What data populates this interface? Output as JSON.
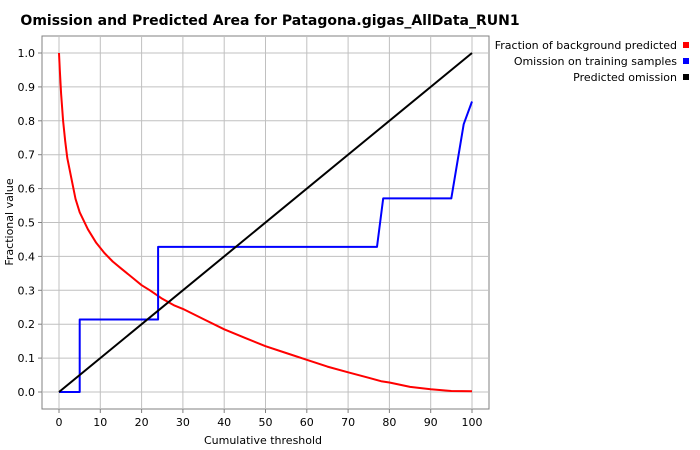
{
  "chart_data": {
    "type": "line",
    "title": "Omission and Predicted Area for Patagona.gigas_AllData_RUN1",
    "xlabel": "Cumulative threshold",
    "ylabel": "Fractional value",
    "xlim": [
      0,
      100
    ],
    "ylim": [
      0,
      1
    ],
    "xticks": [
      "0",
      "10",
      "20",
      "30",
      "40",
      "50",
      "60",
      "70",
      "80",
      "90",
      "100"
    ],
    "yticks": [
      "0.0",
      "0.1",
      "0.2",
      "0.3",
      "0.4",
      "0.5",
      "0.6",
      "0.7",
      "0.8",
      "0.9",
      "1.0"
    ],
    "grid": true,
    "legend_position": "top-right",
    "series": [
      {
        "name": "Fraction of background predicted",
        "color": "#ff0000",
        "x": [
          0,
          0.2,
          0.5,
          1,
          1.5,
          2,
          3,
          4,
          5,
          7,
          9,
          11,
          13,
          15,
          18,
          20,
          22,
          25,
          28,
          30,
          35,
          40,
          45,
          50,
          55,
          60,
          65,
          70,
          75,
          78,
          80,
          85,
          90,
          95,
          100
        ],
        "y": [
          1.0,
          0.95,
          0.88,
          0.8,
          0.74,
          0.69,
          0.63,
          0.57,
          0.53,
          0.48,
          0.44,
          0.41,
          0.385,
          0.365,
          0.335,
          0.315,
          0.3,
          0.275,
          0.255,
          0.245,
          0.215,
          0.185,
          0.16,
          0.135,
          0.115,
          0.095,
          0.075,
          0.058,
          0.042,
          0.032,
          0.028,
          0.015,
          0.008,
          0.003,
          0.002
        ]
      },
      {
        "name": "Omission on training samples",
        "color": "#0000ff",
        "x": [
          0,
          5,
          5,
          24,
          24,
          77,
          78.5,
          95,
          98,
          100
        ],
        "y": [
          0,
          0,
          0.214,
          0.214,
          0.428,
          0.428,
          0.571,
          0.571,
          0.79,
          0.857
        ],
        "shape": "step"
      },
      {
        "name": "Predicted omission",
        "color": "#000000",
        "x": [
          0,
          100
        ],
        "y": [
          0,
          1
        ]
      }
    ]
  }
}
